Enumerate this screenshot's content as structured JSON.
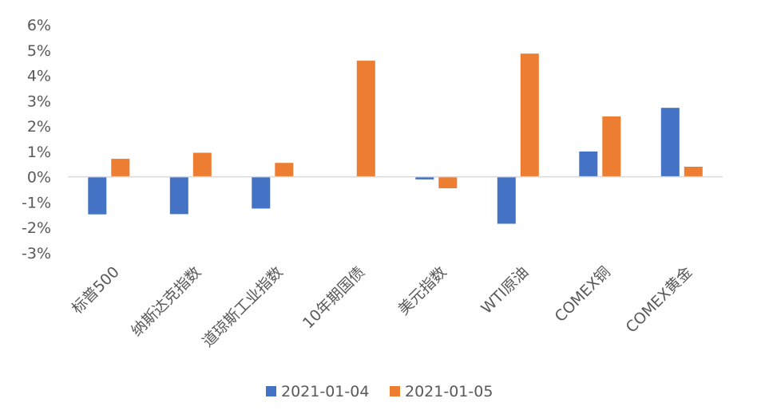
{
  "chart_data": {
    "type": "bar",
    "categories": [
      "标普500",
      "纳斯达克指数",
      "道琼斯工业指数",
      "10年期国债",
      "美元指数",
      "WTI原油",
      "COMEX铜",
      "COMEX黄金"
    ],
    "series": [
      {
        "name": "2021-01-04",
        "color": "#4472C4",
        "values": [
          -1.48,
          -1.47,
          -1.25,
          0.0,
          -0.1,
          -1.85,
          1.0,
          2.72
        ]
      },
      {
        "name": "2021-01-05",
        "color": "#ED7D31",
        "values": [
          0.71,
          0.95,
          0.55,
          4.58,
          -0.45,
          4.86,
          2.38,
          0.4
        ]
      }
    ],
    "ylim": [
      -3,
      6
    ],
    "yticks": [
      "-3%",
      "-2%",
      "-1%",
      "0%",
      "1%",
      "2%",
      "3%",
      "4%",
      "5%",
      "6%"
    ],
    "legend_position": "bottom",
    "grid": false
  }
}
